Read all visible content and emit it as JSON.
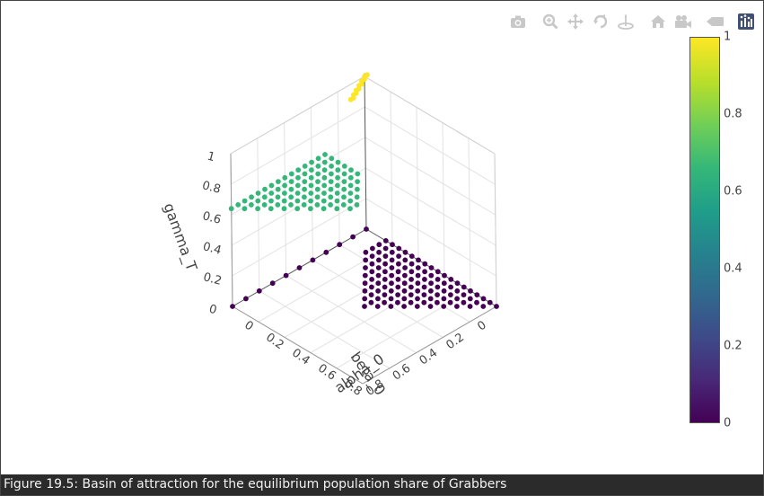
{
  "chart_data": {
    "type": "scatter3d",
    "axes": {
      "x": {
        "label": "alpha_0",
        "ticks": [
          "0",
          "0.2",
          "0.4",
          "0.6",
          "0.8"
        ],
        "range": [
          0,
          1
        ]
      },
      "y": {
        "label": "beta_0",
        "ticks": [
          "0",
          "0.2",
          "0.4",
          "0.6",
          "0.8"
        ],
        "range": [
          0,
          1
        ]
      },
      "z": {
        "label": "gamma_T",
        "ticks": [
          "0",
          "0.2",
          "0.4",
          "0.6",
          "0.8",
          "1"
        ],
        "range": [
          0,
          1
        ]
      }
    },
    "grid": true,
    "colorscale": "Viridis",
    "colorbar": {
      "ticks": [
        "0",
        "0.2",
        "0.4",
        "0.6",
        "0.8",
        "1"
      ],
      "range": [
        0,
        1
      ],
      "placement": "right"
    },
    "groups": [
      {
        "gamma_T": 0,
        "color": "#440154",
        "region": "alpha_0 + beta_0 <= 1, alpha_0 >= beta_0, plus beta_0 axis"
      },
      {
        "gamma_T": 0.64,
        "color": "#35b779",
        "region": "alpha_0 + beta_0 <= 1, beta_0 > alpha_0, beta_0 > 0.2"
      },
      {
        "gamma_T": 1,
        "color": "#fde725",
        "region": "alpha_0 = 0, beta_0 <= 0.2"
      }
    ],
    "grid_step": 0.05
  },
  "modebar": {
    "icons": [
      "camera-icon",
      "zoom-icon",
      "pan-icon",
      "orbit-icon",
      "turntable-icon",
      "home-icon",
      "camera-view-icon",
      "hover-icon",
      "plotly-logo-icon"
    ]
  },
  "caption": "Figure 19.5: Basin of attraction for the equilibrium population share of Grabbers"
}
